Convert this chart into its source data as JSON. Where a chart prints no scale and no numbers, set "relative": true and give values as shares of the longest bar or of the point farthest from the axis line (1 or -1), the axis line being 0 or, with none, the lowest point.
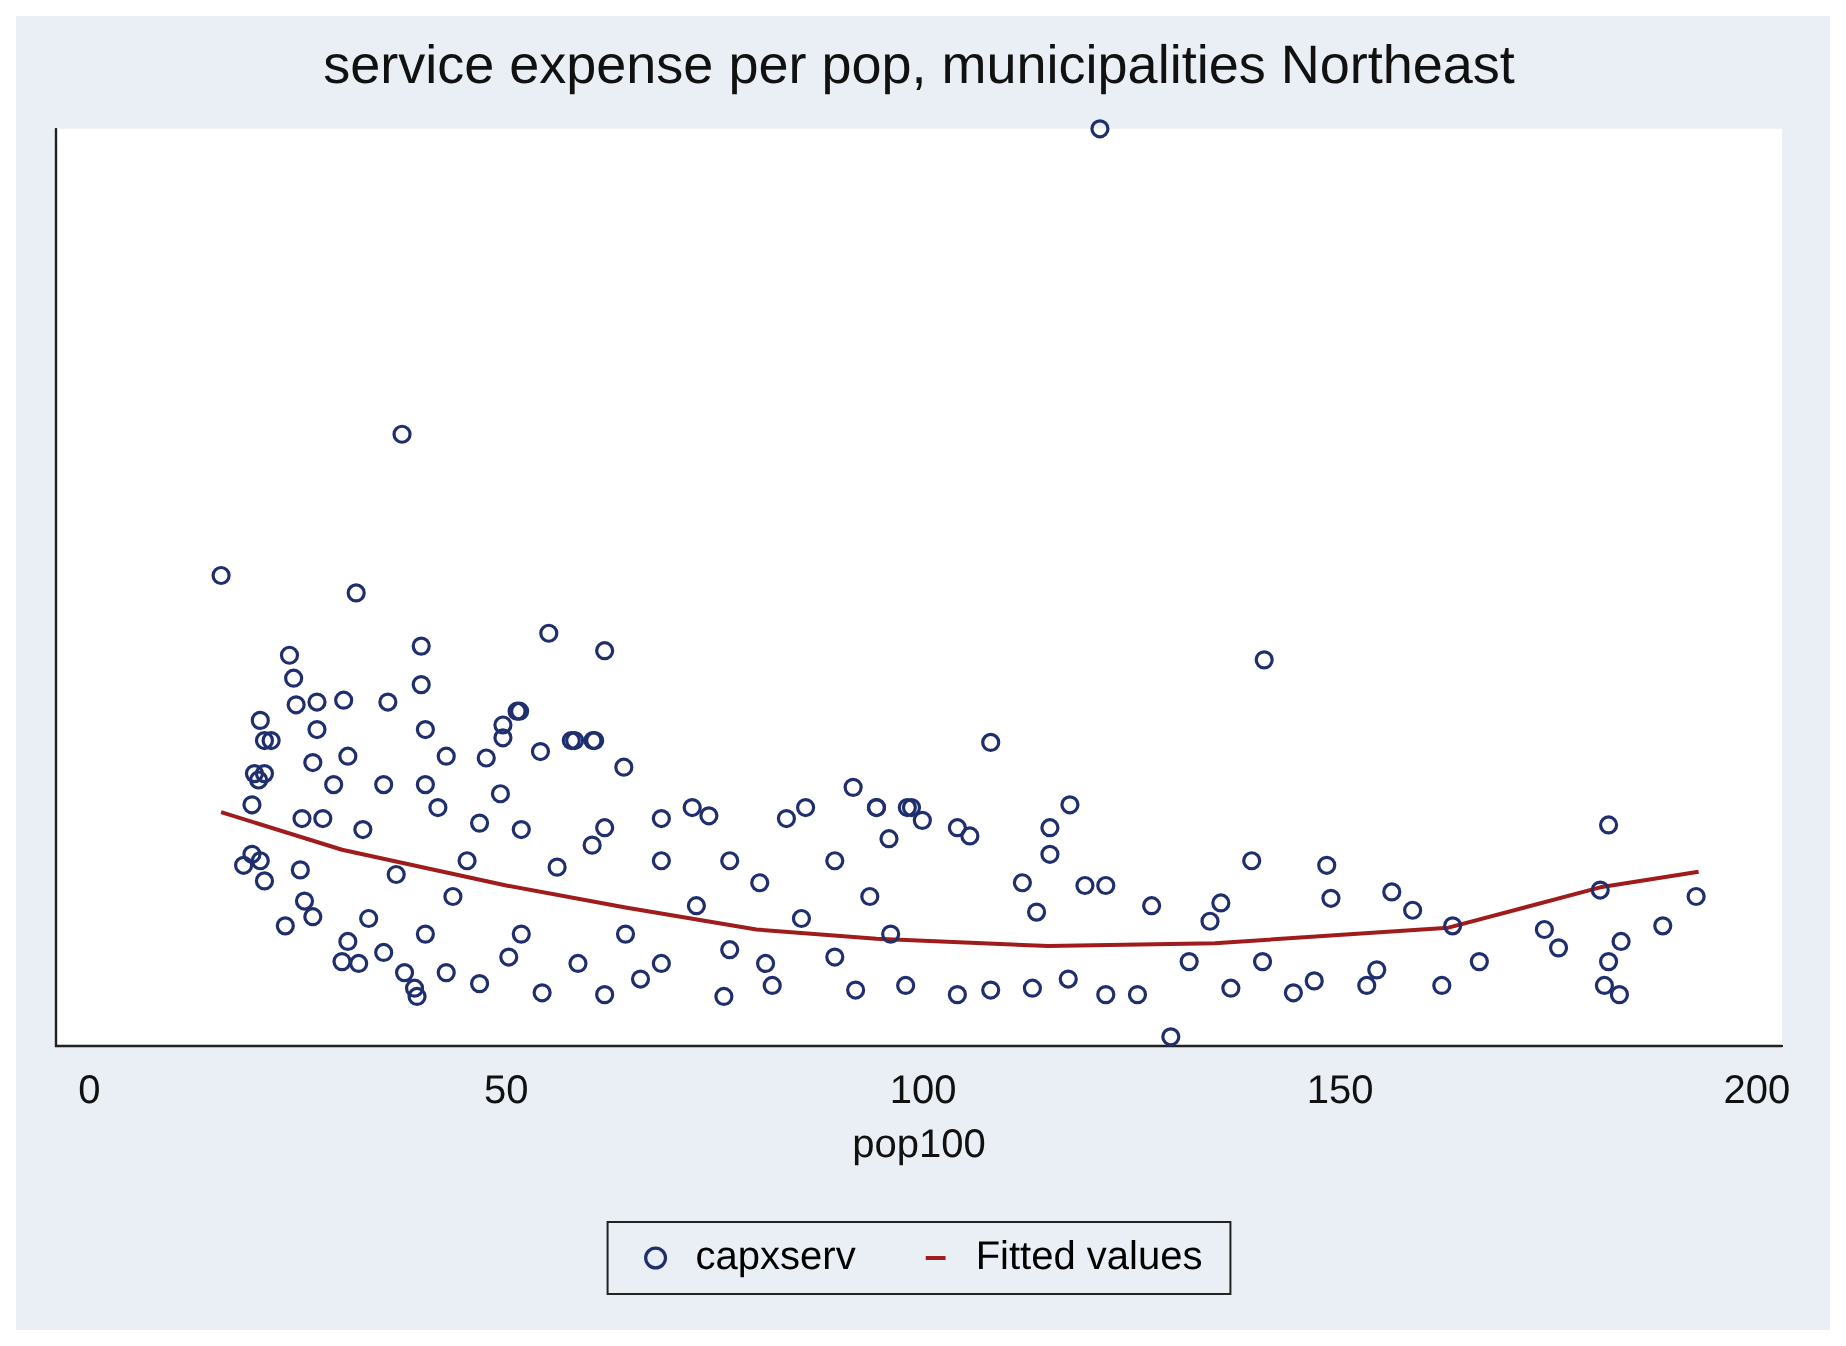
{
  "chart_data": {
    "type": "scatter",
    "title": "service expense per pop, municipalities Northeast",
    "xlabel": "pop100",
    "relative": true,
    "xlim": [
      -4,
      203
    ],
    "xticks": [
      0,
      50,
      100,
      150,
      200
    ],
    "grid": false,
    "legend": "bottom",
    "marker": "circle",
    "series": [
      {
        "name": "capxserv",
        "type": "scatter",
        "color": "#1f2f6e",
        "x": [
          15.8,
          37.5,
          32.0,
          55.1,
          61.8,
          121.2,
          140.9,
          108.1,
          129.7,
          39.8,
          39.8,
          24.0,
          24.5,
          27.3,
          35.8,
          51.3,
          58.2,
          60.4,
          49.6,
          20.3,
          21.0,
          21.0,
          19.5,
          20.5,
          39.3,
          39.0,
          32.3,
          30.3,
          23.5,
          25.8,
          115.2,
          117.6,
          115.2,
          139.4,
          148.4,
          148.9,
          156.2,
          158.7,
          163.5,
          166.7,
          162.2,
          174.5,
          176.2,
          182.2,
          181.2,
          183.7,
          182.2,
          183.5,
          181.7,
          188.7,
          192.7,
          153.2,
          154.4,
          144.4,
          146.9,
          140.7,
          135.7,
          134.4,
          136.9,
          121.9,
          125.7,
          127.4,
          121.9,
          119.4,
          111.9,
          104.1,
          105.6,
          98.6,
          99.9,
          94.4,
          95.9,
          104.1,
          108.1,
          113.1,
          117.4,
          131.9,
          113.6,
          91.6,
          85.9,
          83.6,
          94.4,
          98.1,
          72.3,
          74.3,
          68.6,
          64.1,
          60.6,
          57.8,
          51.6,
          49.6,
          54.1,
          47.6,
          42.8,
          40.3,
          30.5,
          27.3,
          24.8,
          20.5,
          21.8,
          19.8,
          19.5,
          25.5,
          28.0,
          18.5,
          21.0,
          25.3,
          26.8,
          31.0,
          35.3,
          37.8,
          33.5,
          42.8,
          46.8,
          54.3,
          61.8,
          66.1,
          76.1,
          81.9,
          91.9,
          97.9,
          64.3,
          51.8,
          43.6,
          56.1,
          72.8,
          85.4,
          76.8,
          96.1,
          46.8,
          45.3,
          40.3,
          35.3,
          31.0,
          32.8,
          36.8,
          40.3,
          50.3,
          58.6,
          68.6,
          81.1,
          89.4,
          60.3,
          61.8,
          68.6,
          76.8,
          89.4,
          51.8,
          49.3,
          41.8,
          80.4,
          93.6,
          29.3,
          26.8
        ],
        "values": [
          0.513,
          0.667,
          0.494,
          0.45,
          0.431,
          1.0,
          0.421,
          0.331,
          0.01,
          0.436,
          0.394,
          0.426,
          0.401,
          0.375,
          0.375,
          0.365,
          0.333,
          0.333,
          0.35,
          0.29,
          0.333,
          0.297,
          0.209,
          0.202,
          0.054,
          0.063,
          0.09,
          0.092,
          0.131,
          0.158,
          0.238,
          0.263,
          0.209,
          0.202,
          0.197,
          0.161,
          0.168,
          0.148,
          0.131,
          0.092,
          0.066,
          0.127,
          0.107,
          0.241,
          0.17,
          0.114,
          0.092,
          0.056,
          0.066,
          0.131,
          0.163,
          0.066,
          0.083,
          0.058,
          0.071,
          0.092,
          0.156,
          0.136,
          0.063,
          0.056,
          0.056,
          0.153,
          0.175,
          0.175,
          0.178,
          0.238,
          0.229,
          0.26,
          0.246,
          0.26,
          0.226,
          0.056,
          0.061,
          0.063,
          0.073,
          0.092,
          0.146,
          0.282,
          0.26,
          0.248,
          0.26,
          0.26,
          0.26,
          0.251,
          0.248,
          0.304,
          0.333,
          0.333,
          0.365,
          0.336,
          0.321,
          0.314,
          0.316,
          0.345,
          0.377,
          0.345,
          0.372,
          0.355,
          0.333,
          0.297,
          0.263,
          0.248,
          0.248,
          0.197,
          0.18,
          0.192,
          0.141,
          0.114,
          0.102,
          0.08,
          0.139,
          0.08,
          0.068,
          0.058,
          0.056,
          0.073,
          0.054,
          0.066,
          0.061,
          0.066,
          0.122,
          0.122,
          0.163,
          0.195,
          0.153,
          0.139,
          0.105,
          0.122,
          0.243,
          0.202,
          0.285,
          0.285,
          0.316,
          0.236,
          0.187,
          0.122,
          0.097,
          0.09,
          0.09,
          0.09,
          0.097,
          0.219,
          0.238,
          0.202,
          0.202,
          0.202,
          0.236,
          0.275,
          0.26,
          0.178,
          0.163,
          0.285,
          0.309
        ]
      },
      {
        "name": "Fitted values",
        "type": "line",
        "color": "#a01c1c",
        "marker": "none",
        "x": [
          15.8,
          30.3,
          50,
          64.3,
          80,
          94.4,
          115,
          135,
          163,
          181.2,
          193
        ],
        "values": [
          0.255,
          0.214,
          0.175,
          0.151,
          0.127,
          0.117,
          0.109,
          0.112,
          0.129,
          0.173,
          0.19
        ]
      }
    ]
  }
}
